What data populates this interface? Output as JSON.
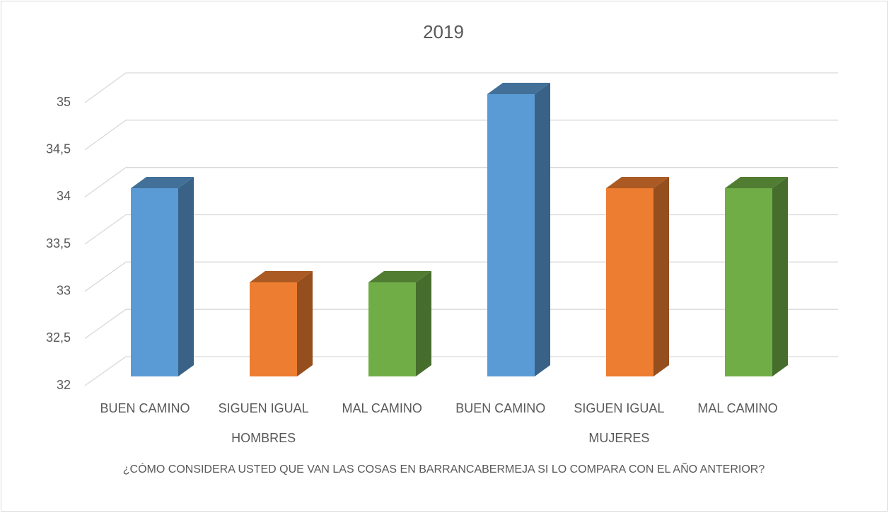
{
  "chart_data": {
    "type": "bar3d",
    "title": "2019",
    "categories": [
      "BUEN CAMINO",
      "SIGUEN IGUAL",
      "MAL CAMINO",
      "BUEN CAMINO",
      "SIGUEN IGUAL",
      "MAL CAMINO"
    ],
    "groups": [
      "HOMBRES",
      "MUJERES"
    ],
    "values": [
      34,
      33,
      33,
      35,
      34,
      34
    ],
    "colors": [
      "#5b9bd5",
      "#ed7d31",
      "#70ad47",
      "#5b9bd5",
      "#ed7d31",
      "#70ad47"
    ],
    "x_label": "¿CÓMO CONSIDERA USTED QUE VAN LAS COSAS EN BARRANCABERMEJA SI LO COMPARA CON EL AÑO ANTERIOR?",
    "ylim": [
      32,
      35
    ],
    "yticks": [
      32,
      {
        "value": 32.5,
        "label": "32,5"
      },
      33,
      {
        "value": 33.5,
        "label": "33,5"
      },
      34,
      {
        "value": 34.5,
        "label": "34,5"
      },
      35
    ],
    "grid": true
  }
}
